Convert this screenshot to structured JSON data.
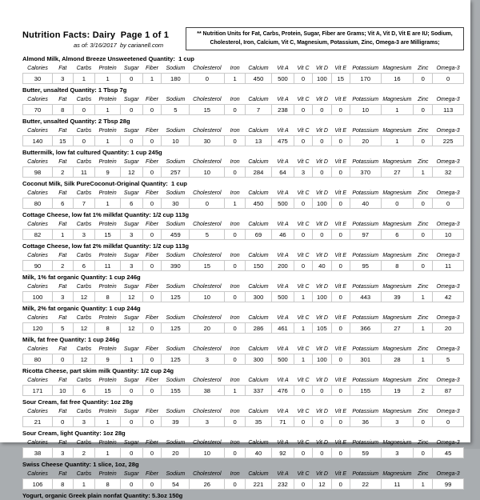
{
  "page": {
    "title": "Nutrition Facts: Dairy  Page 1 of 1",
    "subtitle": "as of: 3/16/2017  by carianell.com",
    "units_note": "** Nutrition Units for Fat, Carbs, Protein, Sugar, Fiber are Grams; Vit A, Vit D, Vit E are IU; Sodium, Cholesterol, Iron, Calcium, Vit C, Magnesium, Potassium, Zinc, Omega-3 are Milligrams;"
  },
  "colors": {
    "cell_border": "#c9c9c9",
    "note_border": "#404040",
    "page_background": "#ffffff",
    "desk_background": "#a9adb0"
  },
  "columns": [
    "Calories",
    "Fat",
    "Carbs",
    "Protein",
    "Sugar",
    "Fiber",
    "Sodium",
    "Cholesterol",
    "Iron",
    "Calcium",
    "Vit A",
    "Vit C",
    "Vit D",
    "Vit E",
    "Potassium",
    "Magnesium",
    "Zinc",
    "Omega-3"
  ],
  "sections": [
    {
      "title": "Almond Milk, Almond Breeze Unsweetened Quantity:  1 cup",
      "values": [
        30,
        3,
        1,
        1,
        0,
        1,
        180,
        0,
        1,
        450,
        500,
        0,
        100,
        15,
        170,
        16,
        0,
        0
      ]
    },
    {
      "title": "Butter, unsalted Quantity: 1 Tbsp 7g",
      "values": [
        70,
        8,
        0,
        1,
        0,
        0,
        5,
        15,
        0,
        7,
        238,
        0,
        0,
        0,
        10,
        1,
        0,
        113
      ]
    },
    {
      "title": "Butter, unsalted Quantity: 2 Tbsp 28g",
      "values": [
        140,
        15,
        0,
        1,
        0,
        0,
        10,
        30,
        0,
        13,
        475,
        0,
        0,
        0,
        20,
        1,
        0,
        225
      ]
    },
    {
      "title": "Buttermilk, low fat cultured Quantity: 1 cup 245g",
      "values": [
        98,
        2,
        11,
        9,
        12,
        0,
        257,
        10,
        0,
        284,
        64,
        3,
        0,
        0,
        370,
        27,
        1,
        32
      ]
    },
    {
      "title": "Coconut Milk, Silk PureCoconut-Original Quantity:  1 cup",
      "values": [
        80,
        6,
        7,
        1,
        6,
        0,
        30,
        0,
        1,
        450,
        500,
        0,
        100,
        0,
        40,
        0,
        0,
        0
      ]
    },
    {
      "title": "Cottage Cheese, low fat 1% milkfat Quantity: 1/2 cup 113g",
      "values": [
        82,
        1,
        3,
        15,
        3,
        0,
        459,
        5,
        0,
        69,
        46,
        0,
        0,
        0,
        97,
        6,
        0,
        10
      ]
    },
    {
      "title": "Cottage Cheese, low fat 2% milkfat Quantity: 1/2 cup 113g",
      "values": [
        90,
        2,
        6,
        11,
        3,
        0,
        390,
        15,
        0,
        150,
        200,
        0,
        40,
        0,
        95,
        8,
        0,
        11
      ]
    },
    {
      "title": "Milk, 1% fat organic Quantity: 1 cup 246g",
      "values": [
        100,
        3,
        12,
        8,
        12,
        0,
        125,
        10,
        0,
        300,
        500,
        1,
        100,
        0,
        443,
        39,
        1,
        42
      ]
    },
    {
      "title": "Milk, 2% fat organic Quantity: 1 cup 244g",
      "values": [
        120,
        5,
        12,
        8,
        12,
        0,
        125,
        20,
        0,
        286,
        461,
        1,
        105,
        0,
        366,
        27,
        1,
        20
      ]
    },
    {
      "title": "Milk, fat free Quantity: 1 cup 246g",
      "values": [
        80,
        0,
        12,
        9,
        1,
        0,
        125,
        3,
        0,
        300,
        500,
        1,
        100,
        0,
        301,
        28,
        1,
        5
      ]
    },
    {
      "title": "Ricotta Cheese, part skim milk Quantity: 1/2 cup 24g",
      "values": [
        171,
        10,
        6,
        15,
        0,
        0,
        155,
        38,
        1,
        337,
        476,
        0,
        0,
        0,
        155,
        19,
        2,
        87
      ]
    },
    {
      "title": "Sour Cream, fat free Quantity: 1oz 28g",
      "values": [
        21,
        0,
        3,
        1,
        0,
        0,
        39,
        3,
        0,
        35,
        71,
        0,
        0,
        0,
        36,
        3,
        0,
        0
      ]
    },
    {
      "title": "Sour Cream, light Quantity: 1oz 28g",
      "values": [
        38,
        3,
        2,
        1,
        0,
        0,
        20,
        10,
        0,
        40,
        92,
        0,
        0,
        0,
        59,
        3,
        0,
        45
      ]
    },
    {
      "title": "Swiss Cheese Quantity: 1 slice, 1oz, 28g",
      "values": [
        106,
        8,
        1,
        8,
        0,
        0,
        54,
        26,
        0,
        221,
        232,
        0,
        12,
        0,
        22,
        11,
        1,
        99
      ]
    },
    {
      "title": "Yogurt, organic Greek plain nonfat Quantity: 5.3oz 150g",
      "values": null
    }
  ]
}
